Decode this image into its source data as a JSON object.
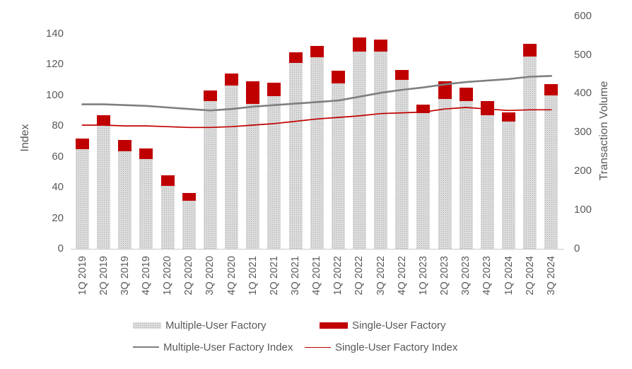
{
  "chart_data": {
    "type": "bar",
    "subtype": "stacked-bars-with-lines",
    "title": "",
    "categories": [
      "1Q 2019",
      "2Q 2019",
      "3Q 2019",
      "4Q 2019",
      "1Q 2020",
      "2Q 2020",
      "3Q 2020",
      "4Q 2020",
      "1Q 2021",
      "2Q 2021",
      "3Q 2021",
      "4Q 2021",
      "1Q 2022",
      "2Q 2022",
      "3Q 2022",
      "4Q 2022",
      "1Q 2023",
      "2Q 2023",
      "3Q 2023",
      "4Q 2023",
      "1Q 2024",
      "2Q 2024",
      "3Q 2024"
    ],
    "series": [
      {
        "name": "Multiple-User Factory",
        "type": "bar",
        "stack": "volume",
        "axis": "right",
        "color": "#dcdcdc",
        "pattern_dot_color": "#aeaeae",
        "values": [
          257,
          318,
          251,
          231,
          162,
          124,
          381,
          421,
          374,
          394,
          480,
          494,
          426,
          508,
          508,
          435,
          349,
          386,
          381,
          344,
          328,
          496,
          395
        ]
      },
      {
        "name": "Single-User Factory",
        "type": "bar",
        "stack": "volume",
        "axis": "right",
        "color": "#c00000",
        "values": [
          28,
          27,
          29,
          28,
          27,
          20,
          28,
          31,
          57,
          34,
          26,
          29,
          33,
          36,
          31,
          26,
          22,
          46,
          35,
          36,
          23,
          33,
          30
        ]
      },
      {
        "name": "Multiple-User Factory Index",
        "type": "line",
        "axis": "left",
        "color": "#7f7f7f",
        "stroke_width": 2.6,
        "values": [
          94,
          94,
          93.5,
          93,
          92,
          91,
          90,
          91,
          92.5,
          93.5,
          94.5,
          95.5,
          96.5,
          99,
          101.5,
          103.5,
          105,
          107,
          108.5,
          109.5,
          110.5,
          112,
          112.5
        ]
      },
      {
        "name": "Single-User Factory Index",
        "type": "line",
        "axis": "left",
        "color": "#c00000",
        "stroke_width": 1.7,
        "values": [
          80.5,
          80.5,
          80,
          80,
          79.5,
          79,
          79,
          79.5,
          80.5,
          81.5,
          83,
          84.5,
          85.5,
          86.5,
          88,
          88.5,
          89,
          91,
          92,
          91,
          90,
          90.5,
          90.5
        ]
      }
    ],
    "left_axis": {
      "label": "Index",
      "min": 0,
      "max": 140,
      "step": 20
    },
    "right_axis": {
      "label": "Transaction Volume",
      "min": 0,
      "max": 600,
      "step": 100
    },
    "grid": false,
    "legend_position": "bottom",
    "legend_rows": [
      [
        "Multiple-User Factory",
        "Single-User Factory"
      ],
      [
        "Multiple-User Factory Index",
        "Single-User Factory Index"
      ]
    ],
    "colors": {
      "bar_gray": "#dcdcdc",
      "bar_red": "#c00000",
      "line_gray": "#7f7f7f",
      "line_red": "#c00000",
      "axis_text": "#595959",
      "axis_line": "#c9c9c9"
    }
  }
}
